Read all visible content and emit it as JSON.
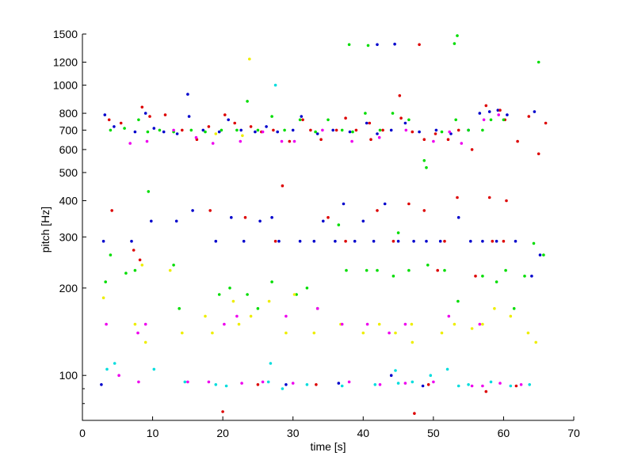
{
  "chart_data": {
    "type": "scatter",
    "title": "",
    "xlabel": "time [s]",
    "ylabel": "pitch [Hz]",
    "xlim": [
      0,
      70
    ],
    "ylim": [
      70,
      1500
    ],
    "yscale": "log",
    "grid": false,
    "legend": "none",
    "xticks": [
      0,
      10,
      20,
      30,
      40,
      50,
      60,
      70
    ],
    "yticks": [
      100,
      200,
      300,
      400,
      500,
      600,
      700,
      800,
      1000,
      1200,
      1500
    ],
    "colors": {
      "blue": "#0000cc",
      "red": "#dd0000",
      "green": "#00dd00",
      "yellow": "#eeee00",
      "magenta": "#ee00ee",
      "cyan": "#00dddd"
    },
    "series": [
      {
        "color": "blue",
        "points": [
          [
            3.2,
            790
          ],
          [
            4.5,
            720
          ],
          [
            7.5,
            690
          ],
          [
            9.0,
            800
          ],
          [
            10.2,
            710
          ],
          [
            11.6,
            690
          ],
          [
            13.5,
            680
          ],
          [
            15.2,
            780
          ],
          [
            17.2,
            700
          ],
          [
            19.5,
            690
          ],
          [
            20.8,
            760
          ],
          [
            22.6,
            700
          ],
          [
            24.6,
            690
          ],
          [
            26.2,
            720
          ],
          [
            27.8,
            690
          ],
          [
            30.0,
            700
          ],
          [
            31.2,
            780
          ],
          [
            33.5,
            680
          ],
          [
            35.7,
            700
          ],
          [
            38.1,
            690
          ],
          [
            40.5,
            740
          ],
          [
            42.0,
            680
          ],
          [
            44.0,
            700
          ],
          [
            46.0,
            740
          ],
          [
            48.0,
            690
          ],
          [
            50.4,
            700
          ],
          [
            52.5,
            680
          ],
          [
            55.0,
            700
          ],
          [
            56.6,
            800
          ],
          [
            58.0,
            810
          ],
          [
            59.2,
            820
          ],
          [
            60.5,
            790
          ],
          [
            64.4,
            810
          ],
          [
            15.0,
            930
          ],
          [
            3.0,
            290
          ],
          [
            7.0,
            290
          ],
          [
            9.8,
            340
          ],
          [
            13.4,
            340
          ],
          [
            15.7,
            370
          ],
          [
            19.0,
            290
          ],
          [
            21.2,
            350
          ],
          [
            23.0,
            290
          ],
          [
            25.3,
            340
          ],
          [
            27.0,
            350
          ],
          [
            28.0,
            290
          ],
          [
            31.0,
            290
          ],
          [
            33.0,
            290
          ],
          [
            34.3,
            340
          ],
          [
            36.0,
            290
          ],
          [
            37.2,
            390
          ],
          [
            38.8,
            290
          ],
          [
            40.0,
            340
          ],
          [
            41.5,
            290
          ],
          [
            43.1,
            390
          ],
          [
            45.0,
            290
          ],
          [
            47.2,
            290
          ],
          [
            49.0,
            290
          ],
          [
            51.0,
            290
          ],
          [
            53.6,
            350
          ],
          [
            55.3,
            290
          ],
          [
            57.0,
            290
          ],
          [
            59.0,
            290
          ],
          [
            61.7,
            290
          ],
          [
            64.0,
            220
          ],
          [
            65.2,
            260
          ],
          [
            2.7,
            93
          ],
          [
            42.0,
            1380
          ],
          [
            44.5,
            1385
          ],
          [
            44.0,
            100
          ],
          [
            48.5,
            92
          ],
          [
            29.0,
            93
          ],
          [
            36.5,
            94
          ]
        ]
      },
      {
        "color": "red",
        "points": [
          [
            3.8,
            760
          ],
          [
            5.5,
            740
          ],
          [
            8.5,
            840
          ],
          [
            9.6,
            780
          ],
          [
            11.8,
            790
          ],
          [
            14.2,
            700
          ],
          [
            16.3,
            650
          ],
          [
            18.0,
            720
          ],
          [
            20.3,
            790
          ],
          [
            21.7,
            740
          ],
          [
            24.0,
            720
          ],
          [
            25.5,
            690
          ],
          [
            27.2,
            700
          ],
          [
            29.5,
            640
          ],
          [
            31.4,
            760
          ],
          [
            32.5,
            700
          ],
          [
            34.0,
            650
          ],
          [
            36.2,
            700
          ],
          [
            37.5,
            770
          ],
          [
            39.0,
            700
          ],
          [
            41.1,
            650
          ],
          [
            42.8,
            700
          ],
          [
            45.4,
            770
          ],
          [
            47.0,
            690
          ],
          [
            48.7,
            650
          ],
          [
            50.3,
            680
          ],
          [
            52.1,
            650
          ],
          [
            53.6,
            700
          ],
          [
            55.5,
            600
          ],
          [
            57.5,
            850
          ],
          [
            59.5,
            820
          ],
          [
            60.2,
            760
          ],
          [
            62.0,
            640
          ],
          [
            63.6,
            780
          ],
          [
            65.0,
            580
          ],
          [
            66.0,
            740
          ],
          [
            45.2,
            920
          ],
          [
            40.9,
            740
          ],
          [
            48.0,
            1380
          ],
          [
            4.2,
            370
          ],
          [
            7.3,
            270
          ],
          [
            8.2,
            250
          ],
          [
            18.2,
            370
          ],
          [
            23.2,
            350
          ],
          [
            27.5,
            290
          ],
          [
            28.5,
            450
          ],
          [
            35.0,
            350
          ],
          [
            37.5,
            290
          ],
          [
            42.0,
            370
          ],
          [
            44.3,
            290
          ],
          [
            46.5,
            390
          ],
          [
            48.7,
            370
          ],
          [
            51.6,
            290
          ],
          [
            53.4,
            410
          ],
          [
            58.0,
            410
          ],
          [
            60.4,
            400
          ],
          [
            58.4,
            290
          ],
          [
            60.0,
            290
          ],
          [
            50.6,
            230
          ],
          [
            56.0,
            220
          ],
          [
            20.0,
            75
          ],
          [
            25.0,
            93
          ],
          [
            33.3,
            93
          ],
          [
            47.3,
            74
          ],
          [
            49.3,
            93
          ],
          [
            57.5,
            88
          ],
          [
            61.8,
            92
          ]
        ]
      },
      {
        "color": "green",
        "points": [
          [
            4.0,
            700
          ],
          [
            6.0,
            710
          ],
          [
            8.0,
            760
          ],
          [
            9.3,
            690
          ],
          [
            11.0,
            700
          ],
          [
            13.0,
            690
          ],
          [
            15.5,
            700
          ],
          [
            17.5,
            690
          ],
          [
            19.8,
            700
          ],
          [
            22.0,
            700
          ],
          [
            23.5,
            880
          ],
          [
            25.0,
            700
          ],
          [
            27.0,
            780
          ],
          [
            28.8,
            700
          ],
          [
            31.0,
            760
          ],
          [
            33.2,
            690
          ],
          [
            35.0,
            760
          ],
          [
            37.0,
            700
          ],
          [
            38.5,
            690
          ],
          [
            40.3,
            800
          ],
          [
            42.4,
            700
          ],
          [
            44.2,
            800
          ],
          [
            46.5,
            760
          ],
          [
            48.7,
            550
          ],
          [
            49.0,
            520
          ],
          [
            51.2,
            690
          ],
          [
            53.2,
            760
          ],
          [
            55.0,
            700
          ],
          [
            57.0,
            700
          ],
          [
            58.2,
            760
          ],
          [
            60.0,
            760
          ],
          [
            65.0,
            1200
          ],
          [
            38.0,
            1380
          ],
          [
            40.7,
            1370
          ],
          [
            53.4,
            1480
          ],
          [
            53.0,
            1390
          ],
          [
            3.3,
            210
          ],
          [
            4.0,
            260
          ],
          [
            6.2,
            225
          ],
          [
            7.5,
            230
          ],
          [
            9.4,
            430
          ],
          [
            13.0,
            240
          ],
          [
            13.8,
            170
          ],
          [
            19.5,
            190
          ],
          [
            21.0,
            200
          ],
          [
            23.5,
            190
          ],
          [
            25.0,
            170
          ],
          [
            27.0,
            210
          ],
          [
            30.5,
            190
          ],
          [
            32.0,
            200
          ],
          [
            33.5,
            170
          ],
          [
            36.5,
            330
          ],
          [
            37.6,
            230
          ],
          [
            40.5,
            230
          ],
          [
            42.0,
            230
          ],
          [
            44.3,
            220
          ],
          [
            45.0,
            310
          ],
          [
            46.5,
            230
          ],
          [
            49.2,
            240
          ],
          [
            51.6,
            230
          ],
          [
            53.5,
            180
          ],
          [
            57.0,
            220
          ],
          [
            59.0,
            210
          ],
          [
            60.3,
            230
          ],
          [
            61.5,
            170
          ],
          [
            63.0,
            220
          ],
          [
            64.3,
            285
          ],
          [
            65.7,
            260
          ]
        ]
      },
      {
        "color": "yellow",
        "points": [
          [
            23.8,
            1230
          ],
          [
            19.0,
            680
          ],
          [
            22.8,
            670
          ],
          [
            3.0,
            185
          ],
          [
            7.5,
            150
          ],
          [
            8.5,
            240
          ],
          [
            14.2,
            140
          ],
          [
            17.5,
            160
          ],
          [
            18.5,
            140
          ],
          [
            21.5,
            180
          ],
          [
            22.3,
            150
          ],
          [
            24.0,
            160
          ],
          [
            26.6,
            180
          ],
          [
            29.0,
            140
          ],
          [
            30.2,
            190
          ],
          [
            33.0,
            140
          ],
          [
            36.8,
            150
          ],
          [
            40.0,
            140
          ],
          [
            42.3,
            150
          ],
          [
            44.6,
            140
          ],
          [
            46.9,
            150
          ],
          [
            51.2,
            140
          ],
          [
            53.0,
            150
          ],
          [
            55.5,
            145
          ],
          [
            57.0,
            150
          ],
          [
            58.7,
            170
          ],
          [
            61.0,
            160
          ],
          [
            63.5,
            140
          ],
          [
            64.6,
            130
          ],
          [
            9.0,
            130
          ],
          [
            47.0,
            130
          ],
          [
            12.5,
            230
          ]
        ]
      },
      {
        "color": "magenta",
        "points": [
          [
            6.8,
            630
          ],
          [
            9.2,
            640
          ],
          [
            13.0,
            700
          ],
          [
            16.2,
            660
          ],
          [
            18.6,
            630
          ],
          [
            22.5,
            640
          ],
          [
            25.7,
            690
          ],
          [
            28.4,
            640
          ],
          [
            30.2,
            640
          ],
          [
            34.2,
            700
          ],
          [
            38.4,
            640
          ],
          [
            42.3,
            660
          ],
          [
            46.1,
            700
          ],
          [
            50.0,
            640
          ],
          [
            52.3,
            690
          ],
          [
            54.0,
            630
          ],
          [
            57.2,
            760
          ],
          [
            59.3,
            790
          ],
          [
            3.4,
            150
          ],
          [
            7.9,
            140
          ],
          [
            9.0,
            150
          ],
          [
            20.2,
            150
          ],
          [
            22.0,
            160
          ],
          [
            29.0,
            160
          ],
          [
            33.5,
            170
          ],
          [
            37.0,
            150
          ],
          [
            40.6,
            150
          ],
          [
            43.7,
            140
          ],
          [
            46.0,
            150
          ],
          [
            52.2,
            160
          ],
          [
            56.6,
            150
          ],
          [
            5.2,
            100
          ],
          [
            8.0,
            95
          ],
          [
            15.0,
            95
          ],
          [
            18.0,
            95
          ],
          [
            22.7,
            94
          ],
          [
            25.7,
            95
          ],
          [
            30.0,
            94
          ],
          [
            38.0,
            95
          ],
          [
            42.4,
            93
          ],
          [
            46.0,
            94
          ],
          [
            50.0,
            95
          ],
          [
            55.5,
            92
          ],
          [
            57.0,
            92
          ],
          [
            59.5,
            94
          ],
          [
            62.5,
            93
          ]
        ]
      },
      {
        "color": "cyan",
        "points": [
          [
            27.5,
            1000
          ],
          [
            3.5,
            105
          ],
          [
            4.6,
            110
          ],
          [
            10.2,
            105
          ],
          [
            14.6,
            95
          ],
          [
            19.0,
            93
          ],
          [
            20.5,
            92
          ],
          [
            26.5,
            95
          ],
          [
            28.5,
            90
          ],
          [
            32.0,
            93
          ],
          [
            41.7,
            93
          ],
          [
            45.0,
            94
          ],
          [
            47.0,
            95
          ],
          [
            49.6,
            100
          ],
          [
            52.0,
            105
          ],
          [
            53.6,
            92
          ],
          [
            55.0,
            93
          ],
          [
            58.2,
            95
          ],
          [
            61.0,
            92
          ],
          [
            63.7,
            93
          ],
          [
            44.6,
            104
          ],
          [
            26.8,
            110
          ],
          [
            37.0,
            92
          ]
        ]
      }
    ]
  }
}
